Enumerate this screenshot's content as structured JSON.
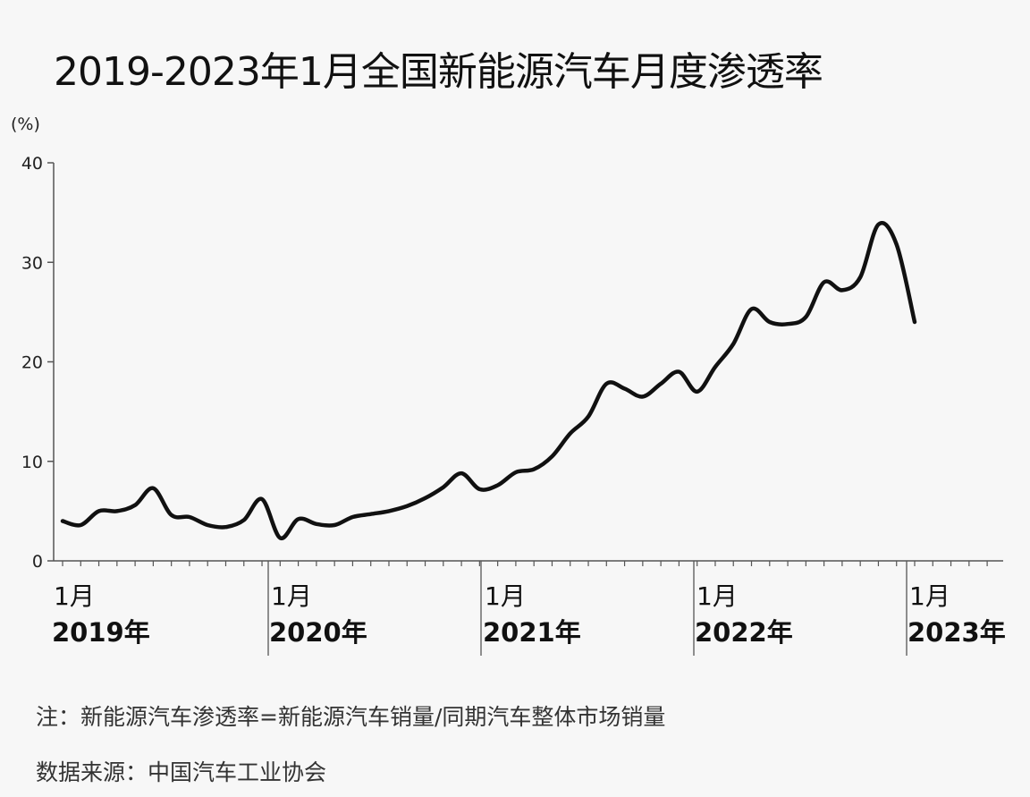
{
  "chart_data": {
    "type": "line",
    "title": "2019-2023年1月全国新能源汽车月度渗透率",
    "ylabel": "(%)",
    "ylim": [
      0,
      40
    ],
    "yticks": [
      0,
      10,
      20,
      30,
      40
    ],
    "grid": false,
    "xticks": [
      {
        "month": "1月",
        "year": "2019年",
        "index": 0
      },
      {
        "month": "1月",
        "year": "2020年",
        "index": 12
      },
      {
        "month": "1月",
        "year": "2021年",
        "index": 24
      },
      {
        "month": "1月",
        "year": "2022年",
        "index": 36
      },
      {
        "month": "1月",
        "year": "2023年",
        "index": 48
      }
    ],
    "series": [
      {
        "values": [
          4.0,
          3.6,
          5.0,
          5.0,
          5.6,
          7.3,
          4.6,
          4.4,
          3.6,
          3.4,
          4.1,
          6.2,
          2.3,
          4.2,
          3.7,
          3.6,
          4.4,
          4.7,
          5.0,
          5.5,
          6.3,
          7.4,
          8.8,
          7.2,
          7.6,
          8.9,
          9.2,
          10.5,
          12.8,
          14.5,
          17.8,
          17.3,
          16.5,
          17.8,
          19.0,
          17.0,
          19.5,
          21.8,
          25.3,
          24.0,
          23.8,
          24.5,
          28.0,
          27.2,
          28.5,
          33.8,
          31.8,
          24.0
        ]
      }
    ]
  },
  "notes": {
    "note": "注：新能源汽车渗透率=新能源汽车销量/同期汽车整体市场销量",
    "source": "数据来源：中国汽车工业协会"
  },
  "colors": {
    "line": "#111111",
    "axis": "#555555",
    "background": "#f7f7f7"
  }
}
